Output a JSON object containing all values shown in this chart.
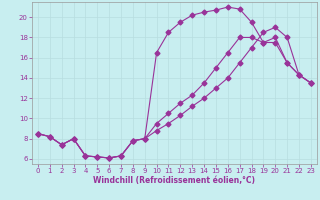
{
  "xlabel": "Windchill (Refroidissement éolien,°C)",
  "bg_color": "#c8eef0",
  "line_color": "#993399",
  "grid_color": "#b8dde0",
  "xlim": [
    -0.5,
    23.5
  ],
  "ylim": [
    5.5,
    21.5
  ],
  "xticks": [
    0,
    1,
    2,
    3,
    4,
    5,
    6,
    7,
    8,
    9,
    10,
    11,
    12,
    13,
    14,
    15,
    16,
    17,
    18,
    19,
    20,
    21,
    22,
    23
  ],
  "yticks": [
    6,
    8,
    10,
    12,
    14,
    16,
    18,
    20
  ],
  "curve1_x": [
    0,
    1,
    2,
    3,
    4,
    5,
    6,
    7,
    8,
    9,
    10,
    11,
    12,
    13,
    14,
    15,
    16,
    17,
    18,
    19,
    20,
    21,
    22,
    23
  ],
  "curve1_y": [
    8.5,
    8.2,
    7.4,
    8.0,
    6.3,
    6.2,
    6.1,
    6.3,
    7.8,
    8.0,
    16.5,
    18.5,
    19.5,
    20.2,
    20.5,
    20.7,
    21.0,
    20.8,
    19.5,
    17.5,
    17.5,
    15.5,
    14.3,
    13.5
  ],
  "curve2_x": [
    0,
    1,
    2,
    3,
    4,
    5,
    6,
    7,
    8,
    9,
    10,
    11,
    12,
    13,
    14,
    15,
    16,
    17,
    18,
    19,
    20,
    21,
    22,
    23
  ],
  "curve2_y": [
    8.5,
    8.2,
    7.4,
    8.0,
    6.3,
    6.2,
    6.1,
    6.3,
    7.8,
    8.0,
    9.5,
    10.5,
    11.5,
    12.3,
    13.5,
    15.0,
    16.5,
    18.0,
    18.0,
    17.5,
    18.0,
    15.5,
    14.3,
    13.5
  ],
  "curve3_x": [
    0,
    1,
    2,
    3,
    4,
    5,
    6,
    7,
    8,
    9,
    10,
    11,
    12,
    13,
    14,
    15,
    16,
    17,
    18,
    19,
    20,
    21,
    22,
    23
  ],
  "curve3_y": [
    8.5,
    8.2,
    7.4,
    8.0,
    6.3,
    6.2,
    6.1,
    6.3,
    7.8,
    8.0,
    8.8,
    9.5,
    10.3,
    11.2,
    12.0,
    13.0,
    14.0,
    15.5,
    17.0,
    18.5,
    19.0,
    18.0,
    14.3,
    13.5
  ]
}
